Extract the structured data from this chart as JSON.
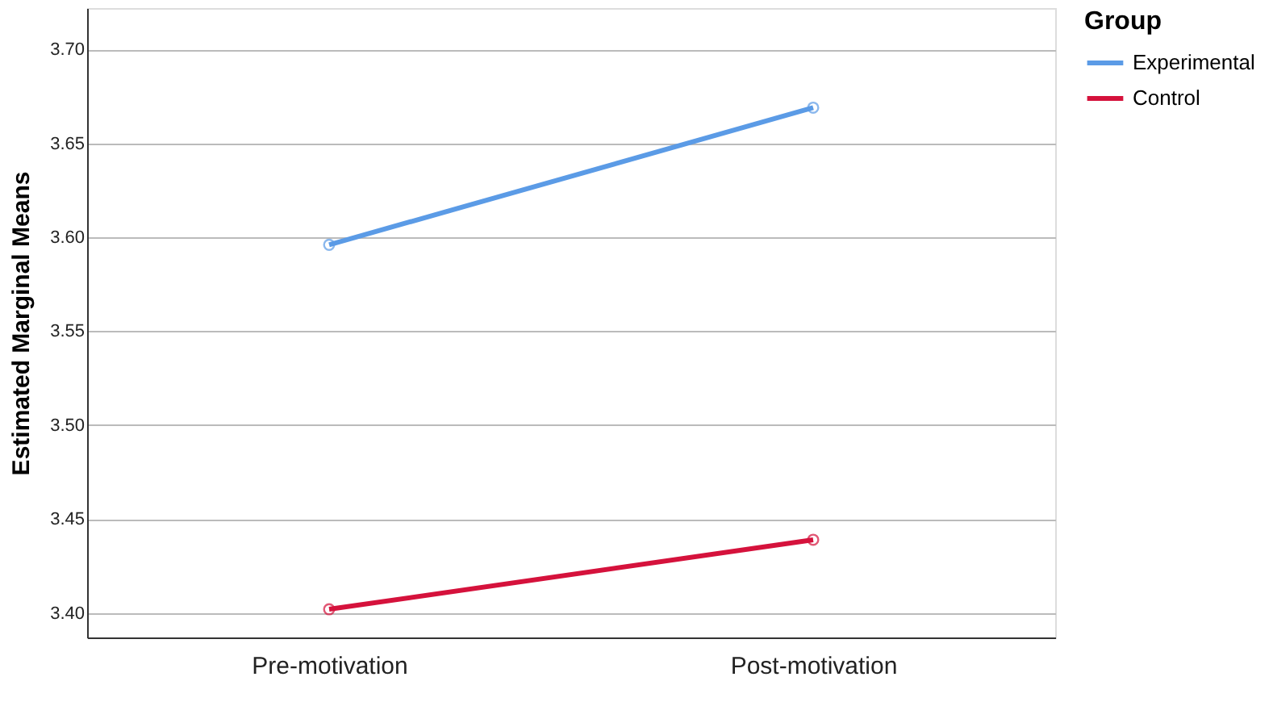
{
  "chart_data": {
    "type": "line",
    "ylabel": "Estimated Marginal Means",
    "legend_title": "Group",
    "categories": [
      "Pre-motivation",
      "Post-motivation"
    ],
    "series": [
      {
        "name": "Experimental",
        "color": "#5b9be6",
        "values": [
          3.596,
          3.669
        ]
      },
      {
        "name": "Control",
        "color": "#d5123c",
        "values": [
          3.402,
          3.439
        ]
      }
    ],
    "ylim": [
      3.387,
      3.722
    ],
    "yticks": [
      {
        "value": 3.4,
        "label": "3.40"
      },
      {
        "value": 3.45,
        "label": "3.45"
      },
      {
        "value": 3.5,
        "label": "3.50"
      },
      {
        "value": 3.55,
        "label": "3.55"
      },
      {
        "value": 3.6,
        "label": "3.60"
      },
      {
        "value": 3.65,
        "label": "3.65"
      },
      {
        "value": 3.7,
        "label": "3.70"
      }
    ],
    "grid": "y",
    "legend": "top right",
    "marker": "circle",
    "line_style": "solid"
  }
}
